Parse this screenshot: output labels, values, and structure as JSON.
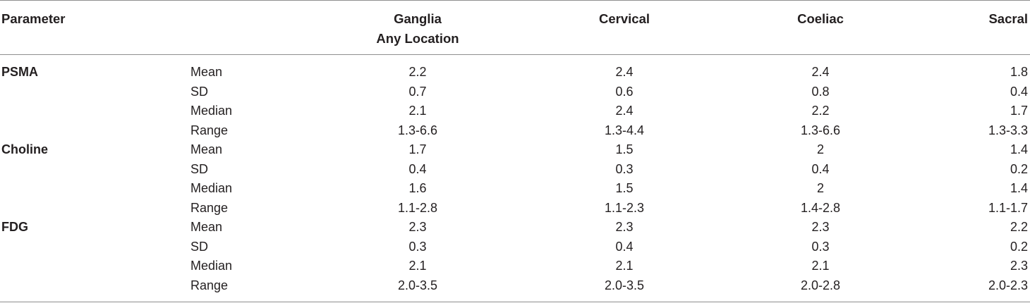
{
  "header": {
    "parameter": "Parameter",
    "col1_line1": "Ganglia",
    "col1_line2": "Any Location",
    "col2": "Cervical",
    "col3": "Coeliac",
    "col4": "Sacral"
  },
  "rows": [
    {
      "group": "PSMA",
      "stat": "Mean",
      "ganglia": "2.2",
      "cervical": "2.4",
      "coeliac": "2.4",
      "sacral": "1.8"
    },
    {
      "group": "",
      "stat": "SD",
      "ganglia": "0.7",
      "cervical": "0.6",
      "coeliac": "0.8",
      "sacral": "0.4"
    },
    {
      "group": "",
      "stat": "Median",
      "ganglia": "2.1",
      "cervical": "2.4",
      "coeliac": "2.2",
      "sacral": "1.7"
    },
    {
      "group": "",
      "stat": "Range",
      "ganglia": "1.3-6.6",
      "cervical": "1.3-4.4",
      "coeliac": "1.3-6.6",
      "sacral": "1.3-3.3"
    },
    {
      "group": "Choline",
      "stat": "Mean",
      "ganglia": "1.7",
      "cervical": "1.5",
      "coeliac": "2",
      "sacral": "1.4"
    },
    {
      "group": "",
      "stat": "SD",
      "ganglia": "0.4",
      "cervical": "0.3",
      "coeliac": "0.4",
      "sacral": "0.2"
    },
    {
      "group": "",
      "stat": "Median",
      "ganglia": "1.6",
      "cervical": "1.5",
      "coeliac": "2",
      "sacral": "1.4"
    },
    {
      "group": "",
      "stat": "Range",
      "ganglia": "1.1-2.8",
      "cervical": "1.1-2.3",
      "coeliac": "1.4-2.8",
      "sacral": "1.1-1.7"
    },
    {
      "group": "FDG",
      "stat": "Mean",
      "ganglia": "2.3",
      "cervical": "2.3",
      "coeliac": "2.3",
      "sacral": "2.2"
    },
    {
      "group": "",
      "stat": "SD",
      "ganglia": "0.3",
      "cervical": "0.4",
      "coeliac": "0.3",
      "sacral": "0.2"
    },
    {
      "group": "",
      "stat": "Median",
      "ganglia": "2.1",
      "cervical": "2.1",
      "coeliac": "2.1",
      "sacral": "2.3"
    },
    {
      "group": "",
      "stat": "Range",
      "ganglia": "2.0-3.5",
      "cervical": "2.0-3.5",
      "coeliac": "2.0-2.8",
      "sacral": "2.0-2.3"
    }
  ]
}
